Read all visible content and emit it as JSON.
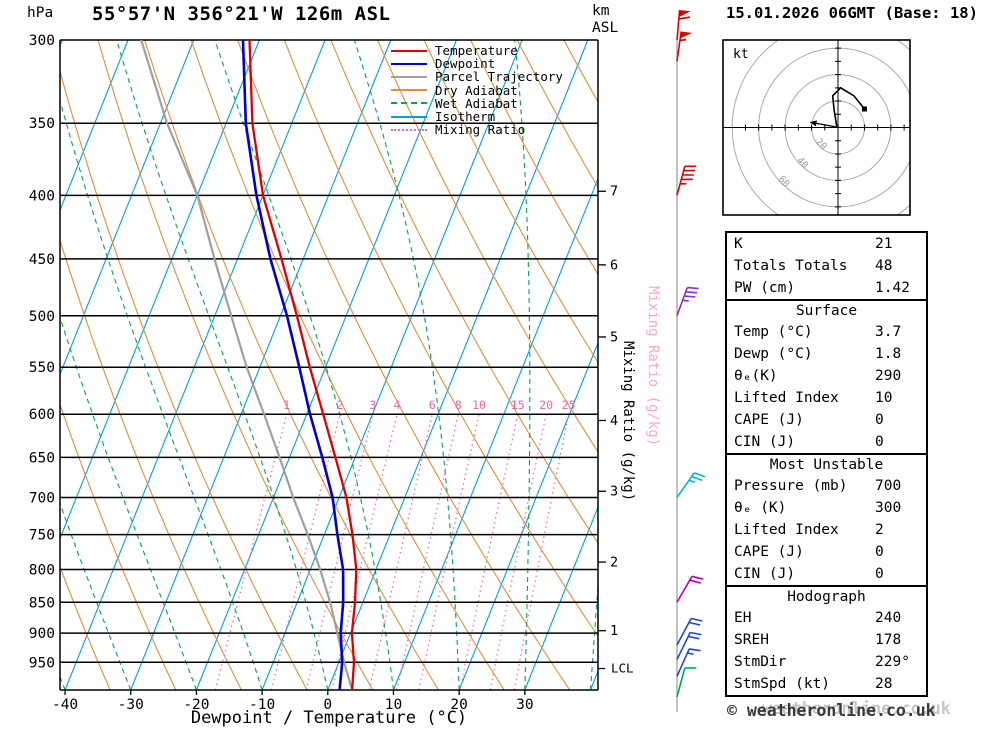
{
  "header": {
    "pressure_unit": "hPa",
    "title": "55°57'N 356°21'W 126m ASL",
    "km_label": "km",
    "asl_label": "ASL",
    "date_title": "15.01.2026 06GMT (Base: 18)"
  },
  "legend": {
    "items": [
      {
        "label": "Temperature",
        "color": "#dd0000",
        "style": "solid"
      },
      {
        "label": "Dewpoint",
        "color": "#0000cc",
        "style": "solid"
      },
      {
        "label": "Parcel Trajectory",
        "color": "#a0a0a0",
        "style": "solid"
      },
      {
        "label": "Dry Adiabat",
        "color": "#df8f3d",
        "style": "solid"
      },
      {
        "label": "Wet Adiabat",
        "color": "#00a651",
        "style": "dashed"
      },
      {
        "label": "Isotherm",
        "color": "#00a0dc",
        "style": "solid"
      },
      {
        "label": "Mixing Ratio",
        "color": "#ef64a8",
        "style": "dotted"
      }
    ]
  },
  "chart_data": {
    "type": "skewt_logp",
    "xlabel": "Dewpoint / Temperature (°C)",
    "mixing_ratio_axis_label": "Mixing Ratio (g/kg)",
    "x_ticks": [
      -40,
      -30,
      -20,
      -10,
      0,
      10,
      20,
      30
    ],
    "pressure_ticks": [
      300,
      350,
      400,
      450,
      500,
      550,
      600,
      650,
      700,
      750,
      800,
      850,
      900,
      950
    ],
    "pressure_range": [
      300,
      1000
    ],
    "km_ticks": [
      {
        "km": 1,
        "pressure": 896
      },
      {
        "km": 2,
        "pressure": 789
      },
      {
        "km": 3,
        "pressure": 692
      },
      {
        "km": 4,
        "pressure": 607
      },
      {
        "km": 5,
        "pressure": 520
      },
      {
        "km": 6,
        "pressure": 455
      },
      {
        "km": 7,
        "pressure": 397
      }
    ],
    "lcl": {
      "label": "LCL",
      "pressure": 961
    },
    "mixing_ratio_lines": [
      1,
      2,
      3,
      4,
      6,
      8,
      10,
      15,
      20,
      25
    ],
    "isotherms": {
      "min": -130,
      "max": 40,
      "step": 10
    },
    "dry_adiabats": {
      "min_theta_k": 230,
      "max_theta_k": 400,
      "step": 10
    },
    "wet_adiabats": {
      "min_c": -60,
      "max_c": 40,
      "step": 10
    },
    "sounding": {
      "pressure_hpa": [
        1000,
        950,
        900,
        850,
        800,
        750,
        700,
        650,
        600,
        550,
        500,
        450,
        400,
        350,
        300
      ],
      "temperature_c": [
        3.7,
        2.3,
        0.2,
        -1.2,
        -3.0,
        -5.7,
        -8.9,
        -13.0,
        -17.5,
        -22.4,
        -27.5,
        -33.3,
        -40.0,
        -46.0,
        -51.5
      ],
      "dewpoint_c": [
        1.8,
        0.5,
        -1.5,
        -3.0,
        -5.0,
        -8.0,
        -11.0,
        -15.0,
        -19.5,
        -24.0,
        -29.0,
        -35.0,
        -41.0,
        -47.0,
        -52.5
      ],
      "parcel_c": [
        3.7,
        0.8,
        -2.0,
        -5.0,
        -8.5,
        -12.5,
        -17.0,
        -21.5,
        -26.5,
        -32.0,
        -37.5,
        -43.5,
        -50.0,
        -59.0,
        -68.0
      ]
    },
    "colors": {
      "temperature": "#dd0000",
      "dewpoint": "#0000cc",
      "parcel": "#a0a0a0",
      "dry_adiabat": "#df8f3d",
      "wet_adiabat": "#00a651",
      "isotherm": "#00a0dc",
      "mixing_ratio": "#ef64a8",
      "grid": "#000000",
      "barb_line": "#999999"
    },
    "wind_barbs": [
      {
        "pressure": 300,
        "speed_kt": 60,
        "dir_to_deg": 5,
        "color": "#dd0000"
      },
      {
        "pressure": 312,
        "speed_kt": 55,
        "dir_to_deg": 8,
        "color": "#dd0000"
      },
      {
        "pressure": 400,
        "speed_kt": 45,
        "dir_to_deg": 15,
        "color": "#dd0000"
      },
      {
        "pressure": 500,
        "speed_kt": 35,
        "dir_to_deg": 20,
        "color": "#8b2fc9"
      },
      {
        "pressure": 700,
        "speed_kt": 25,
        "dir_to_deg": 35,
        "color": "#00b6d4"
      },
      {
        "pressure": 850,
        "speed_kt": 20,
        "dir_to_deg": 30,
        "color": "#bb00bb"
      },
      {
        "pressure": 920,
        "speed_kt": 20,
        "dir_to_deg": 28,
        "color": "#2244dd"
      },
      {
        "pressure": 945,
        "speed_kt": 20,
        "dir_to_deg": 26,
        "color": "#2244dd"
      },
      {
        "pressure": 975,
        "speed_kt": 15,
        "dir_to_deg": 24,
        "color": "#2244dd"
      },
      {
        "pressure": 1013,
        "speed_kt": 10,
        "dir_to_deg": 15,
        "color": "#00a84f"
      }
    ]
  },
  "hodograph": {
    "unit_label": "kt",
    "ring_step_kt": 20,
    "ring_labels": [
      "20",
      "40",
      "60"
    ],
    "trace_uv_kt": [
      [
        20,
        14
      ],
      [
        12,
        24
      ],
      [
        2,
        30
      ],
      [
        -4,
        24
      ],
      [
        -3,
        14
      ],
      [
        -1,
        1
      ]
    ],
    "storm_motion_uv_kt": [
      [
        1,
        0
      ],
      [
        -21,
        4
      ]
    ]
  },
  "stats": {
    "top_rows": [
      {
        "label": "K",
        "value": "21"
      },
      {
        "label": "Totals Totals",
        "value": "48"
      },
      {
        "label": "PW (cm)",
        "value": "1.42"
      }
    ],
    "sections": [
      {
        "title": "Surface",
        "rows": [
          {
            "label": "Temp (°C)",
            "value": "3.7"
          },
          {
            "label": "Dewp (°C)",
            "value": "1.8"
          },
          {
            "label": "θₑ(K)",
            "value": "290"
          },
          {
            "label": "Lifted Index",
            "value": "10"
          },
          {
            "label": "CAPE (J)",
            "value": "0"
          },
          {
            "label": "CIN (J)",
            "value": "0"
          }
        ]
      },
      {
        "title": "Most Unstable",
        "rows": [
          {
            "label": "Pressure (mb)",
            "value": "700"
          },
          {
            "label": "θₑ (K)",
            "value": "300"
          },
          {
            "label": "Lifted Index",
            "value": "2"
          },
          {
            "label": "CAPE (J)",
            "value": "0"
          },
          {
            "label": "CIN (J)",
            "value": "0"
          }
        ]
      },
      {
        "title": "Hodograph",
        "rows": [
          {
            "label": "EH",
            "value": "240"
          },
          {
            "label": "SREH",
            "value": "178"
          },
          {
            "label": "StmDir",
            "value": "229°"
          },
          {
            "label": "StmSpd (kt)",
            "value": "28"
          }
        ]
      }
    ]
  },
  "footer": {
    "copyright": "© weatheronline.co.uk",
    "watermark": "weatheronline.co.uk"
  }
}
